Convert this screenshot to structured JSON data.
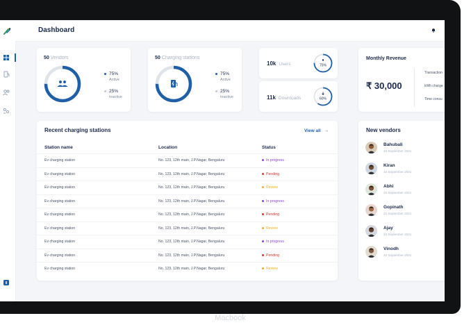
{
  "header": {
    "title": "Dashboard"
  },
  "stats": {
    "vendors": {
      "count": "50",
      "label": "Vendors",
      "active_pct": "75%",
      "active_label": "Active",
      "inactive_pct": "25%",
      "inactive_label": "Inactive",
      "active_fraction": 0.75
    },
    "stations": {
      "count": "50",
      "label": "Charging stations",
      "active_pct": "75%",
      "active_label": "Active",
      "inactive_pct": "25%",
      "inactive_label": "Inactive",
      "active_fraction": 0.75
    },
    "users": {
      "count": "10k",
      "label": "Users",
      "pct": "75%",
      "fraction": 0.75
    },
    "downloads": {
      "count": "11k",
      "label": "Downloads",
      "pct": "60%",
      "fraction": 0.6
    }
  },
  "revenue": {
    "title": "Monthly Revenue",
    "amount": "₹ 30,000",
    "lines": [
      "Transaction",
      "kWh charge",
      "Time consu"
    ]
  },
  "recent": {
    "title": "Recent charging stations",
    "view_all": "View all",
    "columns": [
      "Station name",
      "Location",
      "Status"
    ],
    "rows": [
      {
        "name": "Ev charging station",
        "location": "No. 123, 12th main, J.P.Nagar, Bengaluru",
        "status": "In progress",
        "color": "#8e44d4"
      },
      {
        "name": "Ev charging station",
        "location": "No. 123, 12th main, J.P.Nagar, Bengaluru",
        "status": "Pending",
        "color": "#e0332f"
      },
      {
        "name": "Ev charging station",
        "location": "No. 123, 12th main, J.P.Nagar, Bengaluru",
        "status": "Review",
        "color": "#f2b01e"
      },
      {
        "name": "Ev charging station",
        "location": "No. 123, 12th main, J.P.Nagar, Bengaluru",
        "status": "In progress",
        "color": "#8e44d4"
      },
      {
        "name": "Ev charging station",
        "location": "No. 123, 12th main, J.P.Nagar, Bengaluru",
        "status": "Pending",
        "color": "#e0332f"
      },
      {
        "name": "Ev charging station",
        "location": "No. 123, 12th main, J.P.Nagar, Bengaluru",
        "status": "Review",
        "color": "#f2b01e"
      },
      {
        "name": "Ev charging station",
        "location": "No. 123, 12th main, J.P.Nagar, Bengaluru",
        "status": "In progress",
        "color": "#8e44d4"
      },
      {
        "name": "Ev charging station",
        "location": "No. 123, 12th main, J.P.Nagar, Bengaluru",
        "status": "Pending",
        "color": "#e0332f"
      },
      {
        "name": "Ev charging station",
        "location": "No. 123, 12th main, J.P.Nagar, Bengaluru",
        "status": "Review",
        "color": "#f2b01e"
      }
    ]
  },
  "new_vendors": {
    "title": "New vendors",
    "items": [
      {
        "name": "Bahubali",
        "date": "22 September 2021"
      },
      {
        "name": "Kiran",
        "date": "15 September 2021"
      },
      {
        "name": "Abhi",
        "date": "22 September 2021"
      },
      {
        "name": "Gopinath",
        "date": "22 September 2021"
      },
      {
        "name": "Ajay",
        "date": "22 September 2021"
      },
      {
        "name": "Vinodh",
        "date": "22 September 2021"
      }
    ]
  },
  "device_label": "Macbook",
  "colors": {
    "accent": "#1e5fa8",
    "track": "#dfe3ea",
    "in_progress": "#8e44d4",
    "pending": "#e0332f",
    "review": "#f2b01e"
  },
  "icons": [
    "dashboard-icon",
    "station-icon",
    "users-icon",
    "vendors-icon",
    "settings-icon",
    "bell-icon"
  ]
}
